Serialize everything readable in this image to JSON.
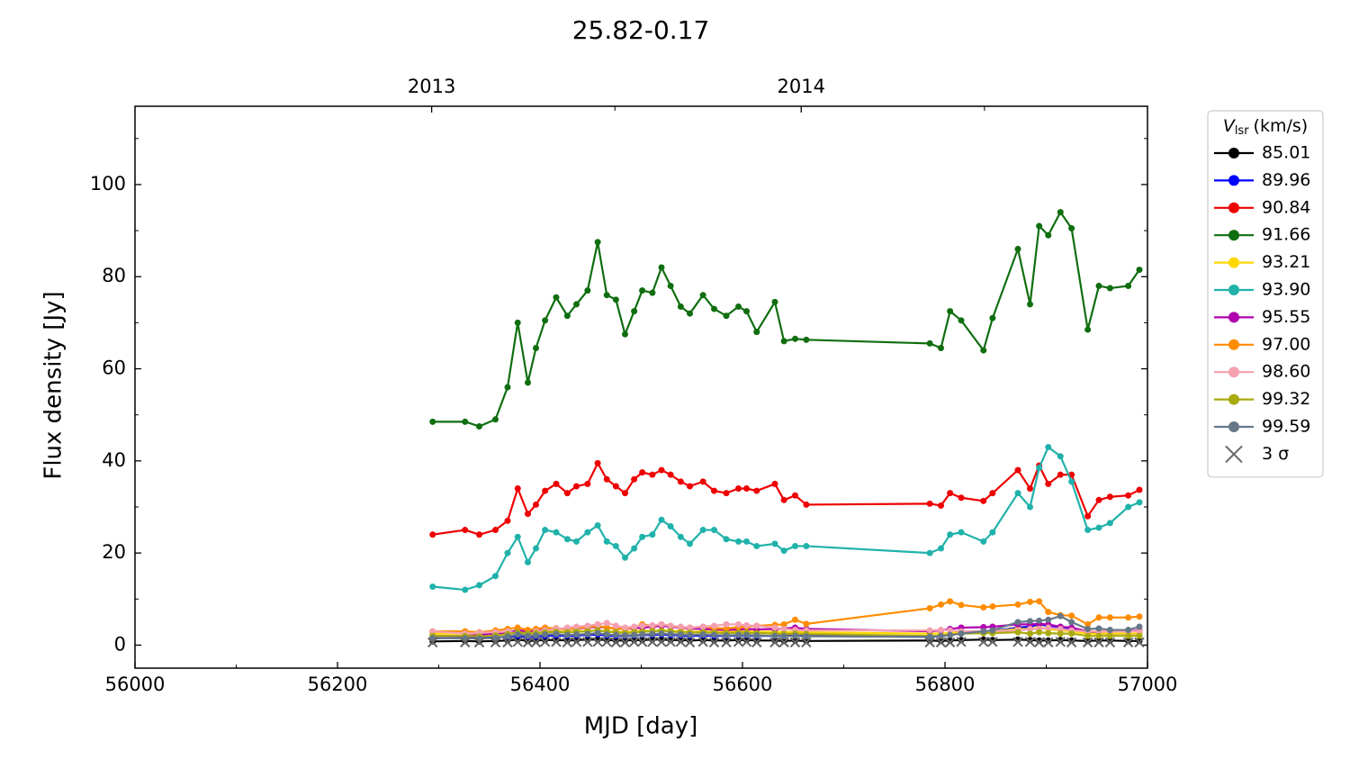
{
  "chart_data": {
    "type": "line",
    "title": "25.82-0.17",
    "xlabel": "MJD [day]",
    "ylabel": "Flux density [Jy]",
    "legend_title": "V",
    "legend_title_sub": "lsr",
    "legend_title_unit": "(km/s)",
    "legend": "outside-right",
    "xlim": [
      56000,
      57000
    ],
    "xticks": [
      56000,
      56200,
      56400,
      56600,
      56800,
      57000
    ],
    "xminorticks": [
      56100,
      56300,
      56500,
      56700,
      56900
    ],
    "ylim": [
      -5,
      117
    ],
    "yticks": [
      0,
      20,
      40,
      60,
      80,
      100
    ],
    "yminorticks": [
      10,
      30,
      50,
      70,
      90,
      110
    ],
    "x2ticks": [
      {
        "value": 56293,
        "label": "2013"
      },
      {
        "value": 56658,
        "label": "2014"
      }
    ],
    "x2minorticks": [
      56474,
      56839
    ],
    "x": [
      56294,
      56326,
      56340,
      56356,
      56368,
      56378,
      56388,
      56396,
      56405,
      56416,
      56427,
      56436,
      56447,
      56457,
      56466,
      56475,
      56484,
      56493,
      56501,
      56511,
      56520,
      56529,
      56539,
      56548,
      56561,
      56572,
      56584,
      56596,
      56604,
      56614,
      56632,
      56641,
      56652,
      56663,
      56785,
      56796,
      56805,
      56816,
      56838,
      56847,
      56872,
      56884,
      56893,
      56902,
      56914,
      56925,
      56941,
      56952,
      56963,
      56981,
      56992
    ],
    "series": [
      {
        "name": "85.01",
        "color": "#000000",
        "marker": "o",
        "values": [
          0.8,
          0.9,
          0.8,
          0.9,
          1,
          1.2,
          0.9,
          1,
          1.1,
          1.1,
          1,
          1.1,
          1.2,
          1.2,
          1.1,
          1,
          1,
          1.1,
          1.1,
          1.2,
          1.2,
          1.1,
          1.1,
          1,
          1.1,
          1,
          1,
          1.1,
          1.1,
          1,
          1,
          0.9,
          1,
          0.9,
          1,
          0.9,
          1,
          1.1,
          1.2,
          1.1,
          1.2,
          1.1,
          1,
          1,
          1.1,
          1,
          0.9,
          1,
          1,
          0.9,
          0.9
        ]
      },
      {
        "name": "89.96",
        "color": "#0000ff",
        "marker": "o",
        "values": [
          1.5,
          1.6,
          1.5,
          1.7,
          1.8,
          2,
          1.8,
          1.9,
          2,
          2.1,
          2,
          2.1,
          2.2,
          2.3,
          2.1,
          2,
          2,
          2.1,
          2.2,
          2.2,
          2.3,
          2.2,
          2.1,
          2,
          2.1,
          2,
          2,
          2.1,
          2.1,
          2,
          2,
          2,
          2.1,
          2,
          1.8,
          2,
          2.2,
          2.5,
          2.8,
          3,
          3.8,
          4,
          4.5,
          4.2,
          3.8,
          3.5,
          2.8,
          2.5,
          2.5,
          2.5,
          2.5
        ]
      },
      {
        "name": "90.84",
        "color": "#ee0000",
        "marker": "o",
        "values": [
          24,
          25,
          24,
          25,
          27,
          34,
          28.5,
          30.5,
          33.5,
          35,
          33,
          34.5,
          35,
          39.5,
          36,
          34.5,
          33,
          36,
          37.5,
          37,
          38,
          37,
          35.5,
          34.5,
          35.5,
          33.5,
          33,
          34,
          34,
          33.5,
          35,
          31.5,
          32.5,
          30.5,
          30.7,
          30.3,
          33,
          32,
          31.3,
          33,
          38,
          34,
          39,
          35,
          37,
          37,
          28,
          31.5,
          32.2,
          32.5,
          33.7
        ]
      },
      {
        "name": "91.66",
        "color": "#0f6e0f",
        "marker": "o",
        "values": [
          48.5,
          48.5,
          47.5,
          49,
          56,
          70,
          57,
          64.5,
          70.5,
          75.5,
          71.5,
          74,
          77,
          87.5,
          76,
          75,
          67.5,
          72.5,
          77,
          76.5,
          82,
          78,
          73.5,
          72,
          76,
          73,
          71.5,
          73.5,
          72.5,
          68,
          74.5,
          66,
          66.5,
          66.3,
          65.5,
          64.5,
          72.5,
          70.5,
          64,
          71,
          86,
          74,
          91,
          89,
          94,
          90.5,
          68.5,
          78,
          77.5,
          78,
          81.5
        ]
      },
      {
        "name": "93.21",
        "color": "#ffd700",
        "marker": "o",
        "values": [
          2.5,
          2.5,
          2.4,
          2.6,
          2.8,
          3,
          2.7,
          2.8,
          3,
          3,
          2.9,
          3,
          3.1,
          3.2,
          3,
          2.9,
          2.8,
          3,
          3.1,
          3.1,
          3.2,
          3.1,
          3,
          2.9,
          3,
          2.9,
          2.9,
          3,
          3,
          2.9,
          2.9,
          2.8,
          2.9,
          2.8,
          2.5,
          2.5,
          2.6,
          2.8,
          3,
          3,
          3.5,
          3.5,
          3.8,
          3.5,
          3.2,
          3,
          2.5,
          2.5,
          2.5,
          2.5,
          2.5
        ]
      },
      {
        "name": "93.90",
        "color": "#20b2aa",
        "marker": "o",
        "values": [
          12.7,
          12,
          13,
          15,
          20,
          23.5,
          18,
          21,
          25,
          24.5,
          23,
          22.5,
          24.5,
          26,
          22.5,
          21.5,
          19,
          21,
          23.5,
          24,
          27.2,
          25.8,
          23.5,
          22,
          25,
          25,
          23,
          22.5,
          22.5,
          21.5,
          22,
          20.5,
          21.5,
          21.5,
          20,
          21,
          24,
          24.5,
          22.5,
          24.5,
          33,
          30,
          38.5,
          43,
          41,
          35.5,
          25,
          25.5,
          26.5,
          30,
          31
        ]
      },
      {
        "name": "95.55",
        "color": "#b000b0",
        "marker": "o",
        "values": [
          2,
          2,
          2.2,
          2.5,
          2.8,
          3.2,
          3,
          3.2,
          3.5,
          3.6,
          3.5,
          3.6,
          3.8,
          4,
          3.8,
          3.6,
          3.5,
          3.7,
          3.8,
          4,
          4.2,
          4,
          3.8,
          3.6,
          3.5,
          3.4,
          3.3,
          3.4,
          3.5,
          3.4,
          3.5,
          3.6,
          3.8,
          3.5,
          3,
          3.2,
          3.5,
          3.8,
          3.9,
          4,
          4.5,
          4.5,
          4.6,
          4.5,
          4,
          3.8,
          3,
          3,
          3,
          3,
          3.2
        ]
      },
      {
        "name": "97.00",
        "color": "#ff8c00",
        "marker": "o",
        "values": [
          3,
          3,
          2.8,
          3.2,
          3.5,
          3.8,
          3.3,
          3.5,
          3.8,
          3.6,
          3.4,
          3.7,
          3.9,
          4.2,
          3.8,
          3.6,
          3.5,
          3.9,
          4.5,
          4.2,
          4.5,
          4.2,
          3.9,
          3.8,
          4,
          3.7,
          3.6,
          3.9,
          4,
          4.2,
          4.4,
          4.5,
          5.5,
          4.6,
          8,
          8.8,
          9.5,
          8.7,
          8.2,
          8.4,
          8.8,
          9.4,
          9.5,
          7.2,
          6.5,
          6.4,
          4.5,
          6,
          6,
          6,
          6.2
        ]
      },
      {
        "name": "98.60",
        "color": "#f4a0b0",
        "marker": "o",
        "values": [
          3,
          2.5,
          2.7,
          2.8,
          3,
          2.5,
          2,
          3,
          3.2,
          3.5,
          3.8,
          4,
          4.2,
          4.5,
          4.8,
          4.2,
          3.8,
          4,
          4.2,
          4.3,
          4.5,
          4.2,
          4,
          3.8,
          4,
          4.2,
          4.5,
          4.5,
          4.3,
          4.2,
          3.8,
          3.5,
          3.3,
          3.2,
          3.2,
          3.3,
          3.2,
          3,
          3,
          3,
          3.2,
          3.5,
          3.5,
          3.8,
          3.5,
          3.2,
          3,
          3,
          3,
          3,
          3
        ]
      },
      {
        "name": "99.32",
        "color": "#aaaa10",
        "marker": "o",
        "values": [
          2,
          2,
          1.9,
          2.1,
          2.4,
          2.8,
          2.5,
          2.6,
          2.8,
          2.9,
          2.8,
          2.9,
          3,
          3.2,
          2.9,
          2.8,
          2.6,
          2.8,
          2.9,
          3,
          3.1,
          3,
          2.8,
          2.7,
          2.8,
          2.7,
          2.6,
          2.7,
          2.7,
          2.6,
          2.5,
          2.4,
          2.5,
          2.4,
          2,
          2,
          2.2,
          2.5,
          2.6,
          2.6,
          2.8,
          2.5,
          2.8,
          2.6,
          2.5,
          2.5,
          2,
          2,
          2,
          2,
          2
        ]
      },
      {
        "name": "99.59",
        "color": "#667788",
        "marker": "o",
        "values": [
          1.5,
          1.5,
          1.4,
          1.6,
          1.9,
          2.3,
          2,
          2.1,
          2.3,
          2.4,
          2.2,
          2.3,
          2.4,
          2.6,
          2.3,
          2.2,
          2.1,
          2.2,
          2.3,
          2.4,
          2.5,
          2.4,
          2.3,
          2.2,
          2.3,
          2.2,
          2.1,
          2.2,
          2.2,
          2.1,
          2,
          1.9,
          2,
          1.9,
          1.8,
          2,
          2.2,
          2.5,
          3,
          3.2,
          5,
          5.2,
          5.3,
          5.5,
          6.3,
          5,
          3.5,
          3.6,
          3.3,
          3.3,
          4
        ]
      },
      {
        "name": "3 σ",
        "color": "#666666",
        "marker": "x",
        "values": [
          0.6,
          0.6,
          0.6,
          0.6,
          0.6,
          0.7,
          0.6,
          0.6,
          0.7,
          0.7,
          0.6,
          0.7,
          0.7,
          0.7,
          0.7,
          0.6,
          0.6,
          0.7,
          0.7,
          0.7,
          0.7,
          0.7,
          0.7,
          0.6,
          0.7,
          0.6,
          0.6,
          0.7,
          0.7,
          0.6,
          0.6,
          0.6,
          0.6,
          0.6,
          0.6,
          0.6,
          0.6,
          0.7,
          0.7,
          0.7,
          0.7,
          0.7,
          0.6,
          0.6,
          0.7,
          0.6,
          0.6,
          0.6,
          0.6,
          0.6,
          0.6
        ]
      }
    ]
  }
}
